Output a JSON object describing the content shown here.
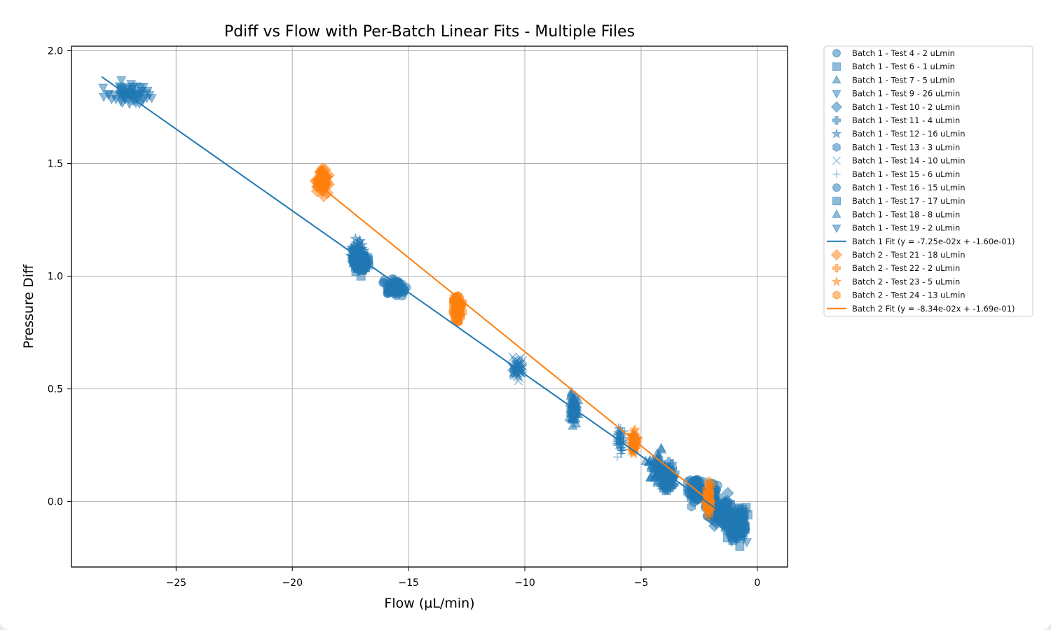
{
  "chart_data": {
    "type": "scatter",
    "title": "Pdiff vs Flow with Per-Batch Linear Fits - Multiple Files",
    "xlabel": "Flow (µL/min)",
    "ylabel": "Pressure Diff",
    "xlim": [
      -29.5,
      1.3
    ],
    "ylim": [
      -0.29,
      2.02
    ],
    "xticks": [
      -25,
      -20,
      -15,
      -10,
      -5,
      0
    ],
    "xtick_labels": [
      "−25",
      "−20",
      "−15",
      "−10",
      "−5",
      "0"
    ],
    "yticks": [
      0.0,
      0.5,
      1.0,
      1.5,
      2.0
    ],
    "ytick_labels": [
      "0.0",
      "0.5",
      "1.0",
      "1.5",
      "2.0"
    ],
    "grid": true,
    "legend_position": "outside-right-top",
    "colors": {
      "batch1": "#1f77b4",
      "batch2": "#ff7f0e"
    },
    "series": [
      {
        "name": "Batch 1 - Test 4 - 2 uLmin",
        "batch": 1,
        "marker": "circle",
        "cx": -2.0,
        "cy": 0.02,
        "sx": 0.25,
        "sy": 0.06
      },
      {
        "name": "Batch 1 - Test 6 - 1 uLmin",
        "batch": 1,
        "marker": "square",
        "cx": -0.9,
        "cy": -0.1,
        "sx": 0.35,
        "sy": 0.07
      },
      {
        "name": "Batch 1 - Test 7 - 5 uLmin",
        "batch": 1,
        "marker": "triangle-up",
        "cx": -4.3,
        "cy": 0.15,
        "sx": 0.35,
        "sy": 0.06
      },
      {
        "name": "Batch 1 - Test 9 - 26 uLmin",
        "batch": 1,
        "marker": "triangle-down",
        "cx": -27.0,
        "cy": 1.81,
        "sx": 0.8,
        "sy": 0.04
      },
      {
        "name": "Batch 1 - Test 10 - 2 uLmin",
        "batch": 1,
        "marker": "diamond",
        "cx": -1.5,
        "cy": -0.05,
        "sx": 0.3,
        "sy": 0.06
      },
      {
        "name": "Batch 1 - Test 11 - 4 uLmin",
        "batch": 1,
        "marker": "plus-filled",
        "cx": -3.8,
        "cy": 0.11,
        "sx": 0.25,
        "sy": 0.05
      },
      {
        "name": "Batch 1 - Test 12 - 16 uLmin",
        "batch": 1,
        "marker": "star",
        "cx": -17.2,
        "cy": 1.1,
        "sx": 0.35,
        "sy": 0.05
      },
      {
        "name": "Batch 1 - Test 13 - 3 uLmin",
        "batch": 1,
        "marker": "hexagon",
        "cx": -2.7,
        "cy": 0.05,
        "sx": 0.25,
        "sy": 0.05
      },
      {
        "name": "Batch 1 - Test 14 - 10 uLmin",
        "batch": 1,
        "marker": "x",
        "cx": -10.3,
        "cy": 0.59,
        "sx": 0.22,
        "sy": 0.04
      },
      {
        "name": "Batch 1 - Test 15 - 6 uLmin",
        "batch": 1,
        "marker": "plus",
        "cx": -5.9,
        "cy": 0.27,
        "sx": 0.15,
        "sy": 0.05
      },
      {
        "name": "Batch 1 - Test 16 - 15 uLmin",
        "batch": 1,
        "marker": "circle",
        "cx": -15.6,
        "cy": 0.95,
        "sx": 0.45,
        "sy": 0.03
      },
      {
        "name": "Batch 1 - Test 17 - 17 uLmin",
        "batch": 1,
        "marker": "square",
        "cx": -17.0,
        "cy": 1.06,
        "sx": 0.3,
        "sy": 0.04
      },
      {
        "name": "Batch 1 - Test 18 - 8 uLmin",
        "batch": 1,
        "marker": "triangle-up",
        "cx": -7.9,
        "cy": 0.41,
        "sx": 0.15,
        "sy": 0.05
      },
      {
        "name": "Batch 1 - Test 19 - 2 uLmin",
        "batch": 1,
        "marker": "triangle-down",
        "cx": -0.8,
        "cy": -0.11,
        "sx": 0.3,
        "sy": 0.06
      },
      {
        "name": "Batch 2 - Test 21 - 18 uLmin",
        "batch": 2,
        "marker": "diamond",
        "cx": -18.7,
        "cy": 1.42,
        "sx": 0.22,
        "sy": 0.05
      },
      {
        "name": "Batch 2 - Test 22 - 2 uLmin",
        "batch": 2,
        "marker": "plus-filled",
        "cx": -2.1,
        "cy": 0.01,
        "sx": 0.08,
        "sy": 0.06
      },
      {
        "name": "Batch 2 - Test 23 - 5 uLmin",
        "batch": 2,
        "marker": "star",
        "cx": -5.3,
        "cy": 0.26,
        "sx": 0.12,
        "sy": 0.04
      },
      {
        "name": "Batch 2 - Test 24 - 13 uLmin",
        "batch": 2,
        "marker": "hexagon",
        "cx": -12.9,
        "cy": 0.86,
        "sx": 0.18,
        "sy": 0.05
      }
    ],
    "fits": [
      {
        "name": "Batch 1 Fit (y = -7.25e-02x + -1.60e-01)",
        "batch": 1,
        "slope": -0.0725,
        "intercept": -0.16,
        "x_range": [
          -28.2,
          -0.4
        ]
      },
      {
        "name": "Batch 2 Fit (y = -8.34e-02x + -1.69e-01)",
        "batch": 2,
        "slope": -0.0834,
        "intercept": -0.169,
        "x_range": [
          -18.8,
          -2.0
        ]
      }
    ],
    "legend_order": [
      "Batch 1 - Test 4 - 2 uLmin",
      "Batch 1 - Test 6 - 1 uLmin",
      "Batch 1 - Test 7 - 5 uLmin",
      "Batch 1 - Test 9 - 26 uLmin",
      "Batch 1 - Test 10 - 2 uLmin",
      "Batch 1 - Test 11 - 4 uLmin",
      "Batch 1 - Test 12 - 16 uLmin",
      "Batch 1 - Test 13 - 3 uLmin",
      "Batch 1 - Test 14 - 10 uLmin",
      "Batch 1 - Test 15 - 6 uLmin",
      "Batch 1 - Test 16 - 15 uLmin",
      "Batch 1 - Test 17 - 17 uLmin",
      "Batch 1 - Test 18 - 8 uLmin",
      "Batch 1 - Test 19 - 2 uLmin",
      "Batch 1 Fit (y = -7.25e-02x + -1.60e-01)",
      "Batch 2 - Test 21 - 18 uLmin",
      "Batch 2 - Test 22 - 2 uLmin",
      "Batch 2 - Test 23 - 5 uLmin",
      "Batch 2 - Test 24 - 13 uLmin",
      "Batch 2 Fit (y = -8.34e-02x + -1.69e-01)"
    ]
  }
}
